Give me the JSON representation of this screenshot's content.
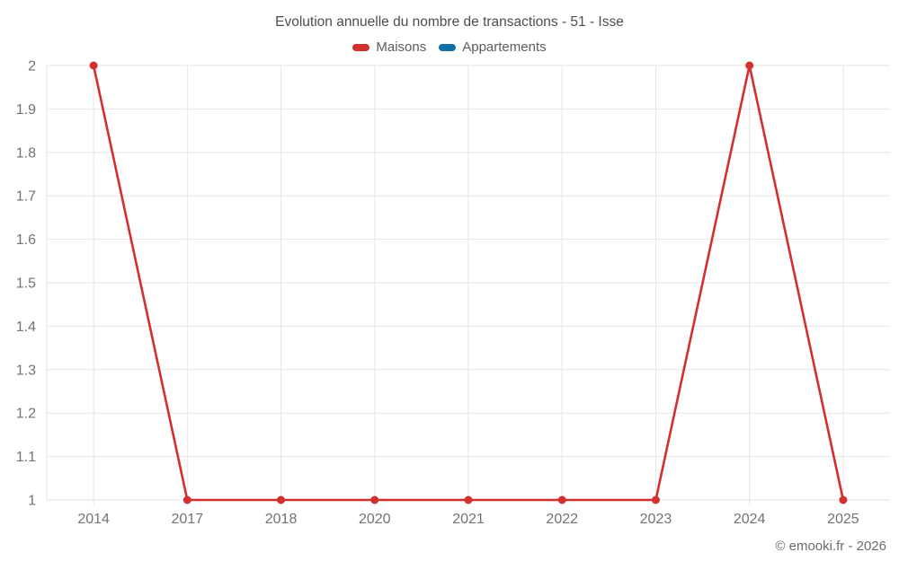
{
  "header": {
    "title": "Evolution annuelle du nombre de transactions - 51 - Isse"
  },
  "legend": {
    "items": [
      {
        "label": "Maisons",
        "color": "#d32f2f"
      },
      {
        "label": "Appartements",
        "color": "#1070a8"
      }
    ]
  },
  "footer": {
    "copyright": "© emooki.fr - 2026"
  },
  "chart_data": {
    "type": "line",
    "title": "Evolution annuelle du nombre de transactions - 51 - Isse",
    "categories": [
      "2014",
      "2017",
      "2018",
      "2020",
      "2021",
      "2022",
      "2023",
      "2024",
      "2025"
    ],
    "series": [
      {
        "name": "Maisons",
        "color": "#d32f2f",
        "values": [
          2,
          1,
          1,
          1,
          1,
          1,
          1,
          2,
          1
        ]
      },
      {
        "name": "Appartements",
        "color": "#1070a8",
        "values": []
      }
    ],
    "xlabel": "",
    "ylabel": "",
    "ylim": [
      1,
      2
    ],
    "ytick_step": 0.1,
    "grid": true,
    "legend_position": "top",
    "colors": {
      "gridline": "#e6e6e6",
      "axis_line": "#e0e0e0",
      "axis_label": "#737373"
    }
  }
}
